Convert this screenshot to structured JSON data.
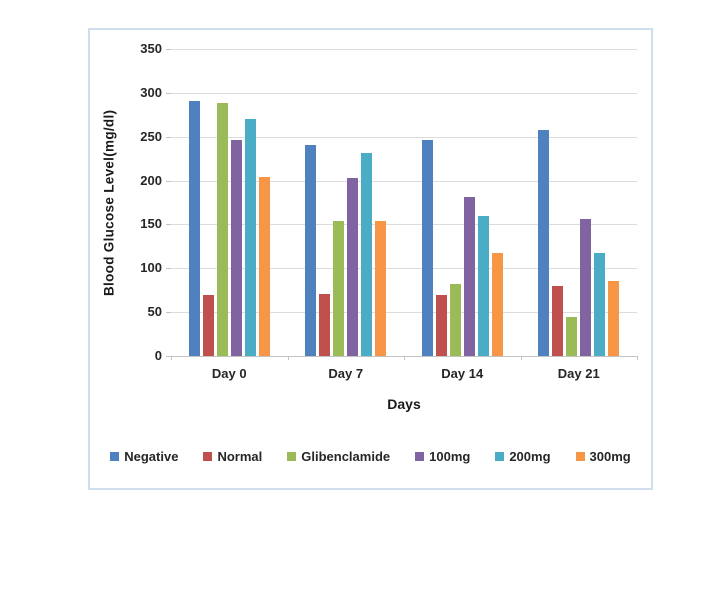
{
  "chart_data": {
    "type": "bar",
    "title": "",
    "categories": [
      "Day 0",
      "Day 7",
      "Day 14",
      "Day 21"
    ],
    "series": [
      {
        "name": "Negative",
        "color": "#4E81BD",
        "values": [
          291,
          240,
          246,
          258
        ]
      },
      {
        "name": "Normal",
        "color": "#C0504D",
        "values": [
          69,
          71,
          69,
          80
        ]
      },
      {
        "name": "Glibenclamide",
        "color": "#9BBB59",
        "values": [
          288,
          154,
          82,
          44
        ]
      },
      {
        "name": "100mg",
        "color": "#8064A2",
        "values": [
          246,
          203,
          181,
          156
        ]
      },
      {
        "name": "200mg",
        "color": "#4BACC6",
        "values": [
          270,
          231,
          160,
          117
        ]
      },
      {
        "name": "300mg",
        "color": "#F79646",
        "values": [
          204,
          154,
          117,
          86
        ]
      }
    ],
    "xlabel": "Days",
    "ylabel": "Blood Glucose Level(mg/dl)",
    "ylim": [
      0,
      350
    ],
    "ytick_step": 50,
    "yticks": [
      0,
      50,
      100,
      150,
      200,
      250,
      300,
      350
    ],
    "grid": true,
    "legend_position": "bottom",
    "colors": {
      "frame_border": "#cfdeef",
      "gridline": "#dcdcdc",
      "axis_line": "#c3c3c3",
      "tick_text": "#262626",
      "title_text": "#1a1a1a"
    }
  }
}
